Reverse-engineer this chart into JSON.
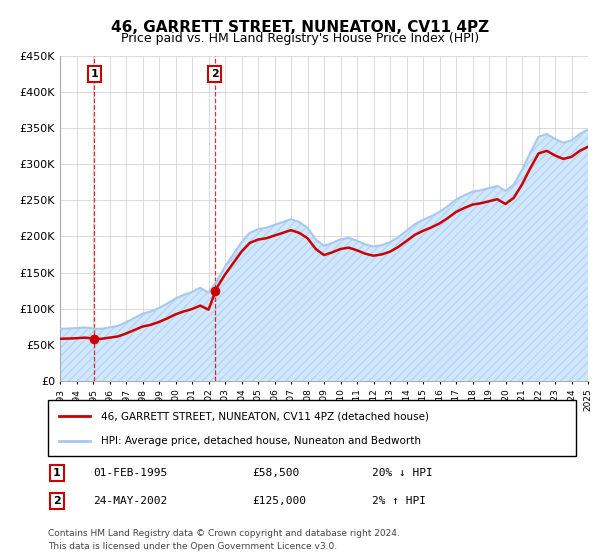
{
  "title": "46, GARRETT STREET, NUNEATON, CV11 4PZ",
  "subtitle": "Price paid vs. HM Land Registry's House Price Index (HPI)",
  "ylim": [
    0,
    450000
  ],
  "yticks": [
    0,
    50000,
    100000,
    150000,
    200000,
    250000,
    300000,
    350000,
    400000,
    450000
  ],
  "ytick_labels": [
    "£0",
    "£50K",
    "£100K",
    "£150K",
    "£200K",
    "£250K",
    "£300K",
    "£350K",
    "£400K",
    "£450K"
  ],
  "hpi_color": "#a8c8f0",
  "hpi_fill_color": "#d0e8ff",
  "hpi_hatch_color": "#b8d4f0",
  "price_color": "#cc0000",
  "purchase1_x": 1995.08,
  "purchase1_y": 58500,
  "purchase1_label": "1",
  "purchase2_x": 2002.38,
  "purchase2_y": 125000,
  "purchase2_label": "2",
  "legend_line1": "46, GARRETT STREET, NUNEATON, CV11 4PZ (detached house)",
  "legend_line2": "HPI: Average price, detached house, Nuneaton and Bedworth",
  "note1_num": "1",
  "note1_date": "01-FEB-1995",
  "note1_price": "£58,500",
  "note1_hpi": "20% ↓ HPI",
  "note2_num": "2",
  "note2_date": "24-MAY-2002",
  "note2_price": "£125,000",
  "note2_hpi": "2% ↑ HPI",
  "footer": "Contains HM Land Registry data © Crown copyright and database right 2024.\nThis data is licensed under the Open Government Licence v3.0.",
  "xmin": 1993,
  "xmax": 2025,
  "vline1_x": 1995.08,
  "vline2_x": 2002.38,
  "years_hpi": [
    1993,
    1993.5,
    1994,
    1994.5,
    1995,
    1995.5,
    1996,
    1996.5,
    1997,
    1997.5,
    1998,
    1998.5,
    1999,
    1999.5,
    2000,
    2000.5,
    2001,
    2001.5,
    2002,
    2002.5,
    2003,
    2003.5,
    2004,
    2004.5,
    2005,
    2005.5,
    2006,
    2006.5,
    2007,
    2007.5,
    2008,
    2008.5,
    2009,
    2009.5,
    2010,
    2010.5,
    2011,
    2011.5,
    2012,
    2012.5,
    2013,
    2013.5,
    2014,
    2014.5,
    2015,
    2015.5,
    2016,
    2016.5,
    2017,
    2017.5,
    2018,
    2018.5,
    2019,
    2019.5,
    2020,
    2020.5,
    2021,
    2021.5,
    2022,
    2022.5,
    2023,
    2023.5,
    2024,
    2024.5,
    2025
  ],
  "hpi_values": [
    72000,
    72500,
    73000,
    74000,
    72500,
    72000,
    74000,
    76000,
    81000,
    87000,
    93000,
    96000,
    101000,
    107000,
    114000,
    119000,
    123000,
    129000,
    122000,
    138000,
    158000,
    175000,
    192000,
    205000,
    210000,
    212000,
    216000,
    220000,
    224000,
    220000,
    212000,
    196000,
    187000,
    191000,
    196000,
    198000,
    194000,
    189000,
    186000,
    188000,
    192000,
    199000,
    208000,
    217000,
    223000,
    228000,
    234000,
    242000,
    251000,
    257000,
    262000,
    264000,
    267000,
    270000,
    263000,
    272000,
    292000,
    316000,
    338000,
    342000,
    335000,
    330000,
    333000,
    342000,
    348000
  ]
}
